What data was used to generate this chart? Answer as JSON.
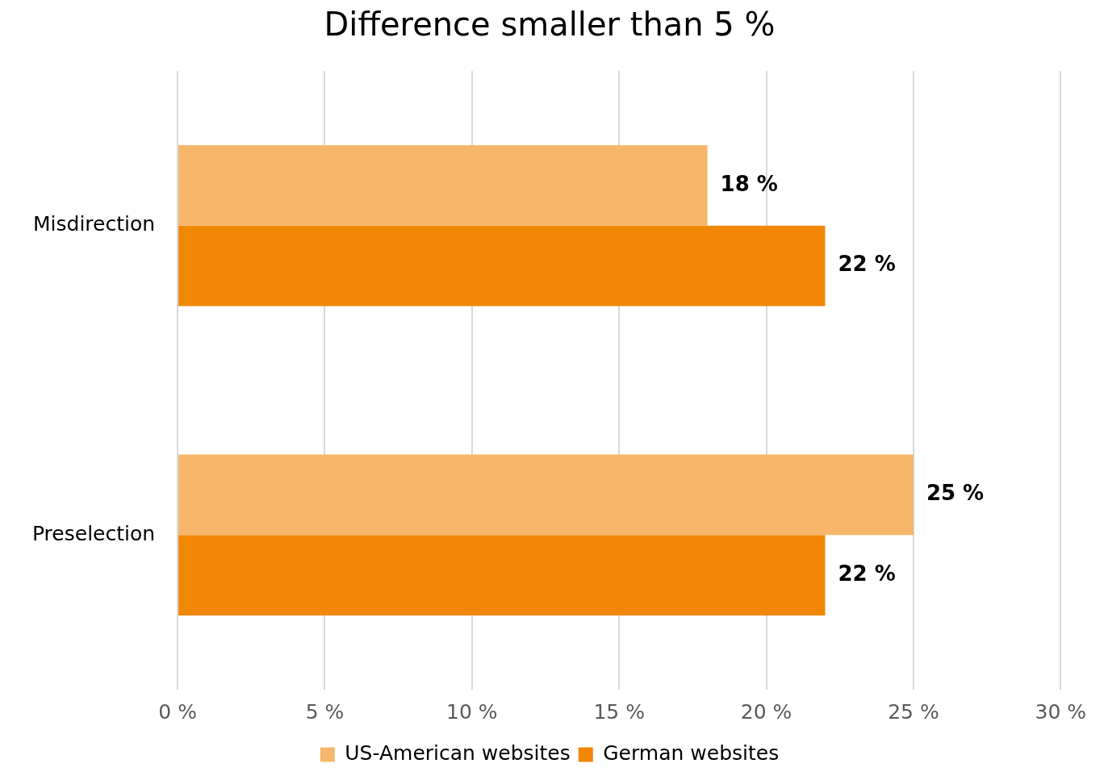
{
  "chart_data": {
    "type": "bar",
    "orientation": "horizontal",
    "title": "Difference smaller than 5 %",
    "categories": [
      "Misdirection",
      "Preselection"
    ],
    "series": [
      {
        "name": "US-American websites",
        "color": "#f6b66b",
        "values": [
          18,
          25
        ],
        "value_labels": [
          "18 %",
          "25 %"
        ]
      },
      {
        "name": "German websites",
        "color": "#f08705",
        "values": [
          22,
          22
        ],
        "value_labels": [
          "22 %",
          "22 %"
        ]
      }
    ],
    "xlim": [
      0,
      30
    ],
    "xticks": [
      {
        "value": 0,
        "label": "0 %"
      },
      {
        "value": 5,
        "label": "5 %"
      },
      {
        "value": 10,
        "label": "10 %"
      },
      {
        "value": 15,
        "label": "15 %"
      },
      {
        "value": 20,
        "label": "20 %"
      },
      {
        "value": 25,
        "label": "25 %"
      },
      {
        "value": 30,
        "label": "30 %"
      }
    ],
    "grid": "x",
    "legend": "bottom"
  }
}
